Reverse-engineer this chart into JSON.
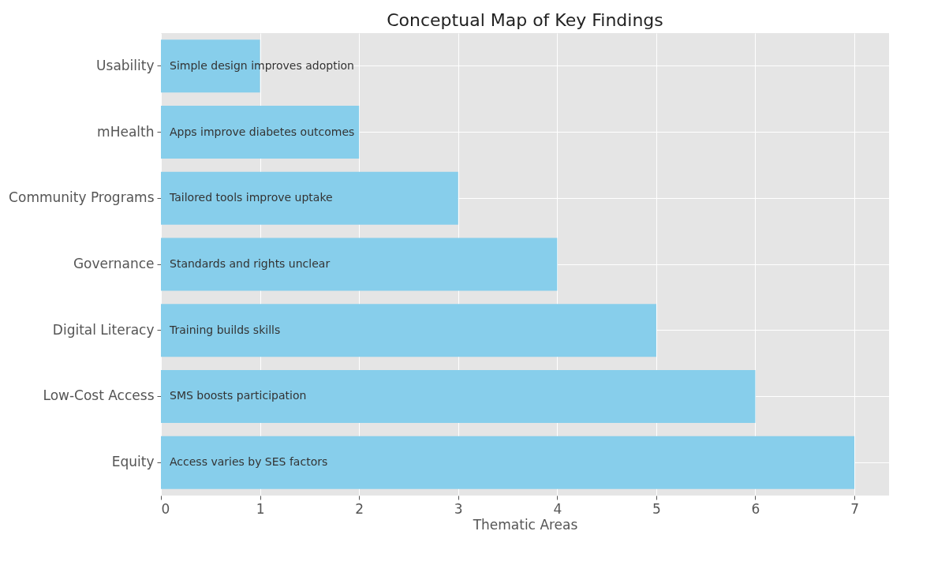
{
  "chart_data": {
    "type": "bar",
    "orientation": "horizontal",
    "title": "Conceptual Map of Key Findings",
    "xlabel": "Thematic Areas",
    "categories": [
      "Usability",
      "mHealth",
      "Community Programs",
      "Governance",
      "Digital Literacy",
      "Low-Cost Access",
      "Equity"
    ],
    "values": [
      1,
      2,
      3,
      4,
      5,
      6,
      7
    ],
    "color": "#87ceeb",
    "xlim": [
      0,
      7.35
    ],
    "xticks": [
      0,
      1,
      2,
      3,
      4,
      5,
      6,
      7
    ],
    "grid": true,
    "annotations": [
      "Simple design improves adoption",
      "Apps improve diabetes outcomes",
      "Tailored tools improve uptake",
      "Standards and rights unclear",
      "Training builds skills",
      "SMS boosts participation",
      "Access varies by SES factors"
    ]
  }
}
